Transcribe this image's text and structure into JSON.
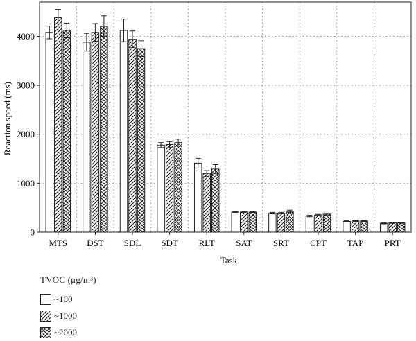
{
  "chart_data": {
    "type": "bar",
    "xlabel": "Task",
    "ylabel": "Reaction speed (ms)",
    "ylim": [
      0,
      4700
    ],
    "yticks": [
      0,
      1000,
      2000,
      3000,
      4000
    ],
    "grid": true,
    "categories": [
      "MTS",
      "DST",
      "SDL",
      "SDT",
      "RLT",
      "SAT",
      "SRT",
      "CPT",
      "TAP",
      "PRT"
    ],
    "legend_title": "TVOC (μg/m³)",
    "legend_placement": "bottom-left",
    "series": [
      {
        "name": "~100",
        "pattern": "blank",
        "values": [
          4080,
          3880,
          4120,
          1780,
          1410,
          410,
          390,
          330,
          220,
          180
        ],
        "errors": [
          130,
          180,
          230,
          50,
          100,
          15,
          15,
          15,
          12,
          10
        ]
      },
      {
        "name": "~1000",
        "pattern": "diagonal",
        "values": [
          4380,
          4080,
          3940,
          1790,
          1200,
          410,
          390,
          350,
          230,
          190
        ],
        "errors": [
          170,
          180,
          170,
          60,
          60,
          15,
          15,
          15,
          10,
          10
        ]
      },
      {
        "name": "~2000",
        "pattern": "crosshatch",
        "values": [
          4120,
          4210,
          3750,
          1830,
          1290,
          410,
          430,
          370,
          230,
          190
        ],
        "errors": [
          150,
          210,
          160,
          70,
          90,
          15,
          20,
          20,
          10,
          10
        ]
      }
    ]
  }
}
